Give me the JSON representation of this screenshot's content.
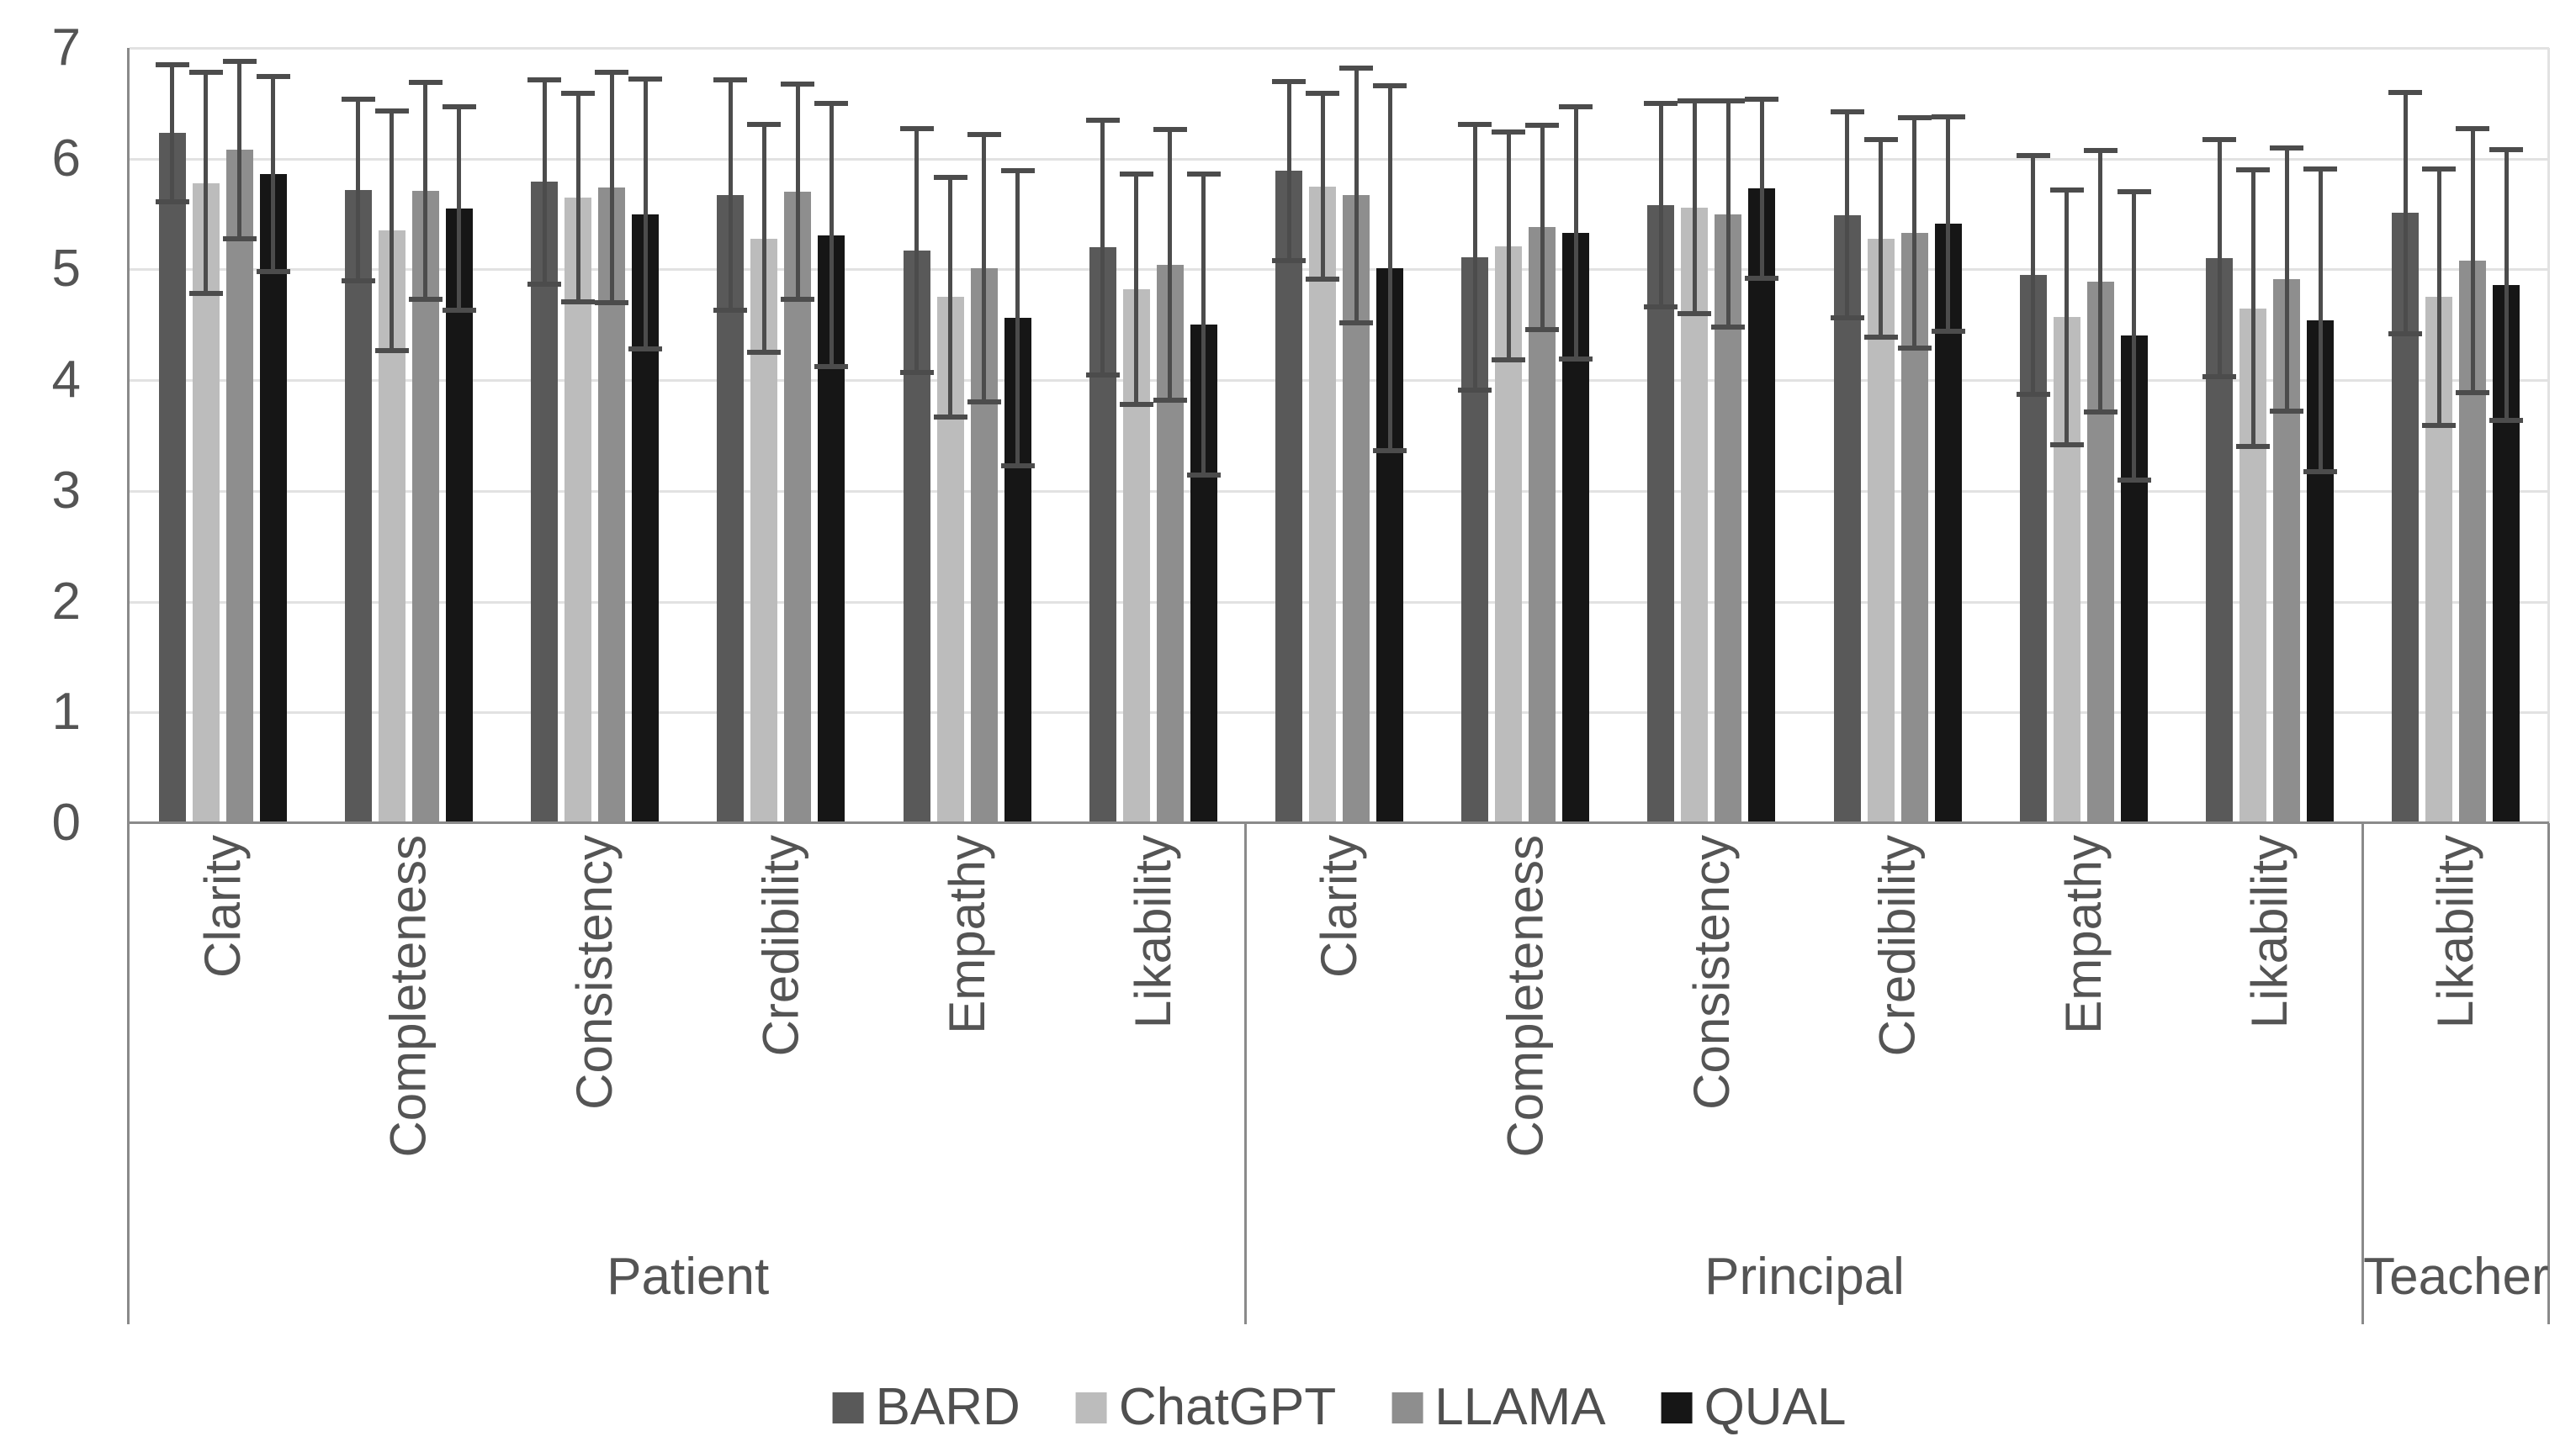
{
  "chart_data": {
    "type": "bar",
    "title": "",
    "xlabel": "",
    "ylabel": "",
    "ylim": [
      0,
      7
    ],
    "yticks": [
      "0",
      "1",
      "2",
      "3",
      "4",
      "5",
      "6",
      "7"
    ],
    "grid": "horizontal",
    "legend_position": "bottom",
    "error_bars": true,
    "groups": [
      {
        "label": "Patient",
        "categories": [
          "Clarity",
          "Completeness",
          "Consistency",
          "Credibility",
          "Empathy",
          "Likability"
        ]
      },
      {
        "label": "Principal",
        "categories": [
          "Clarity",
          "Completeness",
          "Consistency",
          "Credibility",
          "Empathy",
          "Likability"
        ]
      },
      {
        "label": "Teacher",
        "categories": [
          "Likability"
        ]
      }
    ],
    "series": [
      {
        "name": "BARD",
        "color": "#595959",
        "values": [
          6.23,
          5.72,
          5.79,
          5.67,
          5.17,
          5.2,
          5.89,
          5.11,
          5.58,
          5.49,
          4.95,
          5.1,
          5.51
        ],
        "errors": [
          0.62,
          0.82,
          0.92,
          1.04,
          1.1,
          1.15,
          0.81,
          1.2,
          0.92,
          0.93,
          1.08,
          1.07,
          1.09
        ]
      },
      {
        "name": "ChatGPT",
        "color": "#bcbcbc",
        "values": [
          5.78,
          5.35,
          5.65,
          5.28,
          4.75,
          4.82,
          5.75,
          5.21,
          5.56,
          5.28,
          4.57,
          4.65,
          4.75
        ],
        "errors": [
          1.0,
          1.08,
          0.94,
          1.03,
          1.08,
          1.04,
          0.84,
          1.03,
          0.96,
          0.89,
          1.15,
          1.25,
          1.16
        ]
      },
      {
        "name": "LLAMA",
        "color": "#8e8e8e",
        "values": [
          6.08,
          5.71,
          5.74,
          5.7,
          5.01,
          5.04,
          5.67,
          5.38,
          5.5,
          5.33,
          4.89,
          4.91,
          5.08
        ],
        "errors": [
          0.8,
          0.98,
          1.04,
          0.97,
          1.21,
          1.22,
          1.15,
          0.92,
          1.02,
          1.04,
          1.18,
          1.19,
          1.19
        ]
      },
      {
        "name": "QUAL",
        "color": "#161616",
        "values": [
          5.86,
          5.55,
          5.5,
          5.31,
          4.56,
          4.5,
          5.01,
          5.33,
          5.73,
          5.41,
          4.4,
          4.54,
          4.86
        ],
        "errors": [
          0.88,
          0.92,
          1.22,
          1.19,
          1.33,
          1.36,
          1.65,
          1.14,
          0.81,
          0.97,
          1.3,
          1.37,
          1.22
        ]
      }
    ],
    "colors": {
      "gridline": "#e2e2e2",
      "axis": "#8a8a8a",
      "error_bar": "#4c4c4c",
      "text": "#545454"
    }
  }
}
